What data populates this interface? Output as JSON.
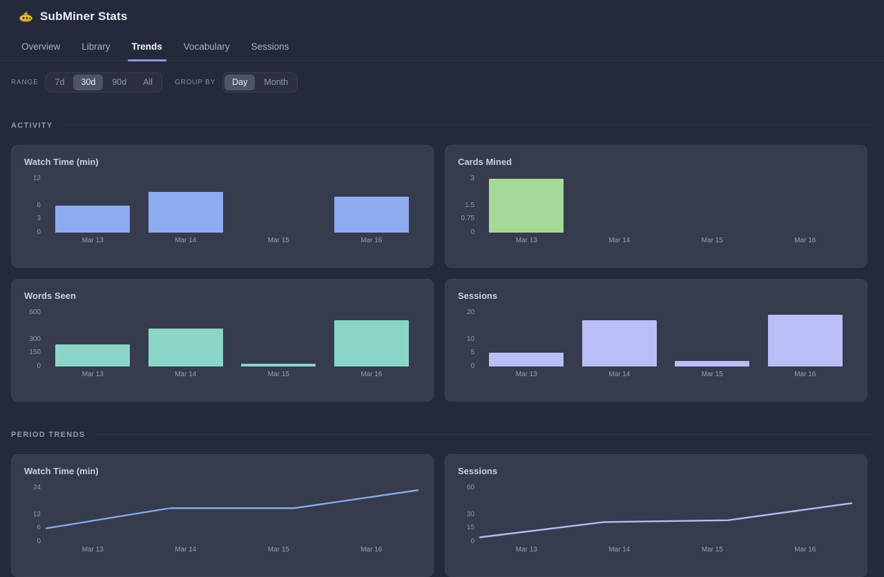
{
  "app": {
    "title": "SubMiner Stats",
    "logo": "submarine-icon"
  },
  "colors": {
    "accent_underline": "#8e98e8",
    "page_bg": "#252a3b",
    "card_bg": "#363b4d",
    "bar_blue": "#8cabf0",
    "bar_green": "#a6d998",
    "bar_teal": "#8ad5c8",
    "bar_lavender": "#b9bef6",
    "line_blue": "#84a9ee",
    "line_lavender": "#b6bbf2"
  },
  "tabs": [
    {
      "label": "Overview",
      "active": false
    },
    {
      "label": "Library",
      "active": false
    },
    {
      "label": "Trends",
      "active": true
    },
    {
      "label": "Vocabulary",
      "active": false
    },
    {
      "label": "Sessions",
      "active": false
    }
  ],
  "filters": {
    "range": {
      "label": "RANGE",
      "options": [
        {
          "label": "7d",
          "selected": false
        },
        {
          "label": "30d",
          "selected": true
        },
        {
          "label": "90d",
          "selected": false
        },
        {
          "label": "All",
          "selected": false
        }
      ]
    },
    "group": {
      "label": "GROUP BY",
      "options": [
        {
          "label": "Day",
          "selected": true
        },
        {
          "label": "Month",
          "selected": false
        }
      ]
    }
  },
  "sections": [
    {
      "label": "ACTIVITY",
      "charts": [
        "activity-watch-time",
        "activity-cards-mined",
        "activity-words-seen",
        "activity-sessions"
      ]
    },
    {
      "label": "PERIOD TRENDS",
      "charts": [
        "trend-watch-time",
        "trend-sessions"
      ]
    }
  ],
  "chart_data": [
    {
      "id": "activity-watch-time",
      "type": "bar",
      "title": "Watch Time (min)",
      "categories": [
        "Mar 13",
        "Mar 14",
        "Mar 15",
        "Mar 16"
      ],
      "values": [
        6,
        9,
        0,
        8
      ],
      "ylim": [
        0,
        12
      ],
      "yticks": [
        12,
        6,
        3,
        0
      ],
      "color": "#8cabf0",
      "grid": false,
      "legend": "none"
    },
    {
      "id": "activity-cards-mined",
      "type": "bar",
      "title": "Cards Mined",
      "categories": [
        "Mar 13",
        "Mar 14",
        "Mar 15",
        "Mar 16"
      ],
      "values": [
        3,
        0,
        0,
        0
      ],
      "ylim": [
        0,
        3
      ],
      "yticks": [
        3,
        1.5,
        0.75,
        0
      ],
      "color": "#a6d998",
      "grid": false,
      "legend": "none"
    },
    {
      "id": "activity-words-seen",
      "type": "bar",
      "title": "Words Seen",
      "categories": [
        "Mar 13",
        "Mar 14",
        "Mar 15",
        "Mar 16"
      ],
      "values": [
        240,
        420,
        30,
        510
      ],
      "ylim": [
        0,
        600
      ],
      "yticks": [
        600,
        300,
        150,
        0
      ],
      "color": "#8ad5c8",
      "grid": false,
      "legend": "none"
    },
    {
      "id": "activity-sessions",
      "type": "bar",
      "title": "Sessions",
      "categories": [
        "Mar 13",
        "Mar 14",
        "Mar 15",
        "Mar 16"
      ],
      "values": [
        5,
        17,
        2,
        19
      ],
      "ylim": [
        0,
        20
      ],
      "yticks": [
        20,
        10,
        5,
        0
      ],
      "color": "#b9bef6",
      "grid": false,
      "legend": "none"
    },
    {
      "id": "trend-watch-time",
      "type": "line",
      "title": "Watch Time (min)",
      "categories": [
        "Mar 13",
        "Mar 14",
        "Mar 15",
        "Mar 16"
      ],
      "values": [
        6,
        15,
        15,
        23
      ],
      "ylim": [
        0,
        24
      ],
      "yticks": [
        24,
        12,
        6,
        0
      ],
      "color": "#84a9ee",
      "grid": false,
      "legend": "none"
    },
    {
      "id": "trend-sessions",
      "type": "line",
      "title": "Sessions",
      "categories": [
        "Mar 13",
        "Mar 14",
        "Mar 15",
        "Mar 16"
      ],
      "values": [
        5,
        22,
        24,
        43
      ],
      "ylim": [
        0,
        60
      ],
      "yticks": [
        60,
        30,
        15,
        0
      ],
      "color": "#b6bbf2",
      "grid": false,
      "legend": "none"
    }
  ]
}
